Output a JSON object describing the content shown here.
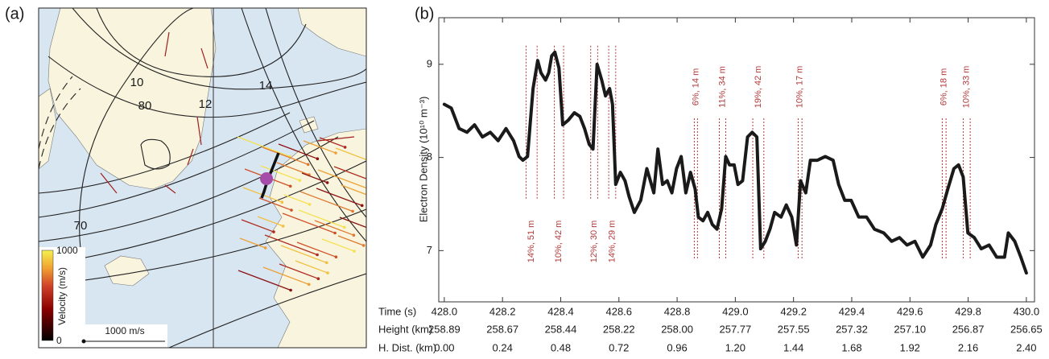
{
  "map": {
    "label": "(a)",
    "contour_labels": [
      "10",
      "80",
      "12",
      "14",
      "70"
    ],
    "colorbar": {
      "title": "Velocity (m/s)",
      "ticks": [
        "1000",
        "0"
      ]
    },
    "scale_label": "1000 m/s"
  },
  "chart_data": {
    "type": "line",
    "panel_label": "(b)",
    "ylabel": "Electron Density (10¹⁰ m⁻³)",
    "xlabel": "Time (s)",
    "color": "#1a1a1a",
    "xlim": [
      427.981,
      430.028
    ],
    "ylim": [
      6.45,
      9.5
    ],
    "yticks": [
      7,
      8,
      9
    ],
    "xticks": [
      {
        "value": 428.0,
        "label": "428.0"
      },
      {
        "value": 428.2,
        "label": "428.2"
      },
      {
        "value": 428.4,
        "label": "428.4"
      },
      {
        "value": 428.6,
        "label": "428.6"
      },
      {
        "value": 428.8,
        "label": "428.8"
      },
      {
        "value": 429.0,
        "label": "429.0"
      },
      {
        "value": 429.2,
        "label": "429.2"
      },
      {
        "value": 429.4,
        "label": "429.4"
      },
      {
        "value": 429.6,
        "label": "429.6"
      },
      {
        "value": 429.8,
        "label": "429.8"
      },
      {
        "value": 430.0,
        "label": "430.0"
      }
    ],
    "x_rows": [
      {
        "name": "Height (km)",
        "labels": [
          "258.89",
          "258.67",
          "258.44",
          "258.22",
          "258.00",
          "257.77",
          "257.55",
          "257.32",
          "257.10",
          "256.87",
          "256.65"
        ]
      },
      {
        "name": "H. Dist. (km)",
        "labels": [
          "0.00",
          "0.24",
          "0.48",
          "0.72",
          "0.96",
          "1.20",
          "1.44",
          "1.68",
          "1.92",
          "2.16",
          "2.40"
        ]
      }
    ],
    "x": [
      428.0,
      428.024,
      428.051,
      428.078,
      428.104,
      428.131,
      428.158,
      428.185,
      428.212,
      428.238,
      428.257,
      428.27,
      428.286,
      428.305,
      428.321,
      428.332,
      428.348,
      428.359,
      428.369,
      428.38,
      428.394,
      428.407,
      428.426,
      428.447,
      428.466,
      428.482,
      428.498,
      428.511,
      428.525,
      428.541,
      428.554,
      428.568,
      428.578,
      428.589,
      428.605,
      428.621,
      428.635,
      428.653,
      428.675,
      428.696,
      428.72,
      428.734,
      428.75,
      428.766,
      428.782,
      428.798,
      428.814,
      428.83,
      428.846,
      428.862,
      428.873,
      428.889,
      428.905,
      428.921,
      428.937,
      428.953,
      428.967,
      428.98,
      428.996,
      429.009,
      429.025,
      429.042,
      429.058,
      429.074,
      429.087,
      429.103,
      429.119,
      429.135,
      429.157,
      429.175,
      429.194,
      429.21,
      429.224,
      429.242,
      429.258,
      429.282,
      429.309,
      429.336,
      429.355,
      429.376,
      429.398,
      429.424,
      429.451,
      429.478,
      429.51,
      429.537,
      429.564,
      429.59,
      429.617,
      429.644,
      429.671,
      429.689,
      429.711,
      429.73,
      429.751,
      429.767,
      429.783,
      429.799,
      429.821,
      429.845,
      429.872,
      429.898,
      429.925,
      429.938,
      429.96,
      429.981,
      430.0
    ],
    "values": [
      8.57,
      8.53,
      8.31,
      8.27,
      8.35,
      8.22,
      8.27,
      8.18,
      8.31,
      8.18,
      8.01,
      7.97,
      8.01,
      8.74,
      9.04,
      8.91,
      8.83,
      8.91,
      9.09,
      9.13,
      8.96,
      8.35,
      8.4,
      8.48,
      8.44,
      8.31,
      8.14,
      8.09,
      9.0,
      8.83,
      8.66,
      8.74,
      8.57,
      7.71,
      7.84,
      7.75,
      7.58,
      7.41,
      7.54,
      7.88,
      7.62,
      8.09,
      7.71,
      7.75,
      7.62,
      7.88,
      8.01,
      7.62,
      7.84,
      7.66,
      7.36,
      7.32,
      7.41,
      7.28,
      7.23,
      7.45,
      8.01,
      7.92,
      7.92,
      7.71,
      7.75,
      8.22,
      8.27,
      8.22,
      7.02,
      7.1,
      7.23,
      7.41,
      7.36,
      7.49,
      7.36,
      7.06,
      7.75,
      7.62,
      7.97,
      7.97,
      8.01,
      7.97,
      7.71,
      7.54,
      7.54,
      7.36,
      7.36,
      7.23,
      7.19,
      7.1,
      7.14,
      7.06,
      7.1,
      6.93,
      7.06,
      7.28,
      7.45,
      7.66,
      7.88,
      7.92,
      7.79,
      7.19,
      7.14,
      7.02,
      7.06,
      6.93,
      6.93,
      7.19,
      7.1,
      6.93,
      6.76
    ],
    "annotation_color": "#b23a3a",
    "annotations": [
      {
        "text": "14%, 51 m",
        "x": [
          428.281,
          428.319
        ],
        "position": "below"
      },
      {
        "text": "10%, 42 m",
        "x": [
          428.378,
          428.41
        ],
        "position": "below"
      },
      {
        "text": "12%, 30 m",
        "x": [
          428.503,
          428.527
        ],
        "position": "below"
      },
      {
        "text": "14%, 29 m",
        "x": [
          428.565,
          428.589
        ],
        "position": "below"
      },
      {
        "text": "6%, 14 m",
        "x": [
          428.859,
          428.87
        ],
        "position": "above"
      },
      {
        "text": "11%, 34 m",
        "x": [
          428.945,
          428.967
        ],
        "position": "above"
      },
      {
        "text": "19%, 42 m",
        "x": [
          429.06,
          429.098
        ],
        "position": "above"
      },
      {
        "text": "10%, 17 m",
        "x": [
          429.216,
          429.229
        ],
        "position": "above"
      },
      {
        "text": "6%, 18 m",
        "x": [
          429.711,
          429.724
        ],
        "position": "above"
      },
      {
        "text": "10%, 33 m",
        "x": [
          429.783,
          429.807
        ],
        "position": "above"
      }
    ]
  }
}
